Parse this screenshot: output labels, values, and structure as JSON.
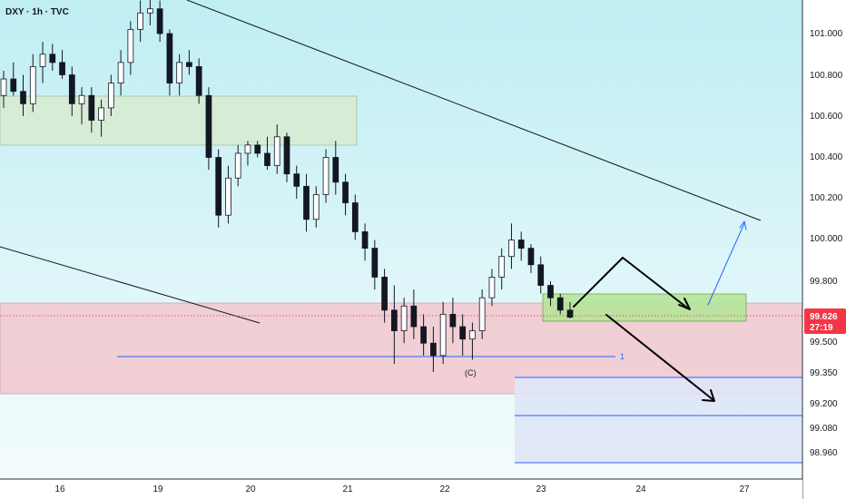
{
  "header": {
    "title": "DXY · 1h · TVC"
  },
  "chart_data": {
    "type": "candlestick",
    "symbol": "DXY",
    "timeframe": "1h",
    "source": "TVC",
    "x_ticks": [
      "16",
      "19",
      "20",
      "21",
      "22",
      "23",
      "24",
      "27"
    ],
    "y_ticks": [
      "101.000",
      "100.800",
      "100.600",
      "100.400",
      "100.200",
      "100.000",
      "99.800",
      "99.500",
      "99.350",
      "99.200",
      "99.080",
      "98.960"
    ],
    "last_price": "99.626",
    "countdown": "27:19",
    "annotations": {
      "fib_level": "1",
      "wave_label": "(C)"
    },
    "colors": {
      "up": "#26a69a",
      "down": "#ef5350",
      "candles": "#131722",
      "price_tag": "#f23645",
      "bg_top": "#bfeef3",
      "bg_bottom": "#f4fcfd",
      "green_zone": "#b6e39a",
      "red_zone": "#f2c4cc",
      "fib_line": "#2962ff"
    },
    "candles": [
      [
        100.7,
        100.82,
        100.64,
        100.78
      ],
      [
        100.78,
        100.86,
        100.7,
        100.72
      ],
      [
        100.72,
        100.8,
        100.6,
        100.66
      ],
      [
        100.66,
        100.9,
        100.62,
        100.84
      ],
      [
        100.84,
        100.96,
        100.76,
        100.9
      ],
      [
        100.9,
        100.95,
        100.82,
        100.86
      ],
      [
        100.86,
        100.92,
        100.78,
        100.8
      ],
      [
        100.8,
        100.84,
        100.6,
        100.66
      ],
      [
        100.66,
        100.74,
        100.56,
        100.7
      ],
      [
        100.7,
        100.74,
        100.52,
        100.58
      ],
      [
        100.58,
        100.68,
        100.5,
        100.64
      ],
      [
        100.64,
        100.8,
        100.6,
        100.76
      ],
      [
        100.76,
        100.92,
        100.7,
        100.86
      ],
      [
        100.86,
        101.06,
        100.8,
        101.02
      ],
      [
        101.02,
        101.16,
        100.96,
        101.1
      ],
      [
        101.1,
        101.18,
        101.04,
        101.12
      ],
      [
        101.12,
        101.16,
        100.96,
        101.0
      ],
      [
        101.0,
        101.02,
        100.7,
        100.76
      ],
      [
        100.76,
        100.9,
        100.7,
        100.86
      ],
      [
        100.86,
        100.92,
        100.8,
        100.84
      ],
      [
        100.84,
        100.88,
        100.66,
        100.7
      ],
      [
        100.7,
        100.74,
        100.34,
        100.4
      ],
      [
        100.4,
        100.44,
        100.06,
        100.12
      ],
      [
        100.12,
        100.36,
        100.08,
        100.3
      ],
      [
        100.3,
        100.46,
        100.26,
        100.42
      ],
      [
        100.42,
        100.48,
        100.36,
        100.46
      ],
      [
        100.46,
        100.48,
        100.4,
        100.42
      ],
      [
        100.42,
        100.5,
        100.34,
        100.36
      ],
      [
        100.36,
        100.56,
        100.32,
        100.5
      ],
      [
        100.5,
        100.52,
        100.28,
        100.32
      ],
      [
        100.32,
        100.36,
        100.2,
        100.26
      ],
      [
        100.26,
        100.32,
        100.04,
        100.1
      ],
      [
        100.1,
        100.26,
        100.06,
        100.22
      ],
      [
        100.22,
        100.44,
        100.18,
        100.4
      ],
      [
        100.4,
        100.48,
        100.22,
        100.28
      ],
      [
        100.28,
        100.32,
        100.12,
        100.18
      ],
      [
        100.18,
        100.22,
        100.0,
        100.04
      ],
      [
        100.04,
        100.08,
        99.9,
        99.96
      ],
      [
        99.96,
        100.0,
        99.76,
        99.82
      ],
      [
        99.82,
        99.86,
        99.6,
        99.66
      ],
      [
        99.66,
        99.78,
        99.4,
        99.56
      ],
      [
        99.56,
        99.72,
        99.5,
        99.68
      ],
      [
        99.68,
        99.76,
        99.52,
        99.58
      ],
      [
        99.58,
        99.64,
        99.44,
        99.5
      ],
      [
        99.5,
        99.58,
        99.36,
        99.44
      ],
      [
        99.44,
        99.7,
        99.4,
        99.64
      ],
      [
        99.64,
        99.72,
        99.5,
        99.58
      ],
      [
        99.58,
        99.64,
        99.44,
        99.52
      ],
      [
        99.52,
        99.6,
        99.42,
        99.56
      ],
      [
        99.56,
        99.76,
        99.52,
        99.72
      ],
      [
        99.72,
        99.86,
        99.68,
        99.82
      ],
      [
        99.82,
        99.96,
        99.76,
        99.92
      ],
      [
        99.92,
        100.08,
        99.86,
        100.0
      ],
      [
        100.0,
        100.04,
        99.9,
        99.96
      ],
      [
        99.96,
        99.98,
        99.84,
        99.88
      ],
      [
        99.88,
        99.92,
        99.74,
        99.78
      ],
      [
        99.78,
        99.8,
        99.68,
        99.72
      ],
      [
        99.72,
        99.74,
        99.64,
        99.66
      ],
      [
        99.66,
        99.7,
        99.62,
        99.626
      ]
    ]
  }
}
